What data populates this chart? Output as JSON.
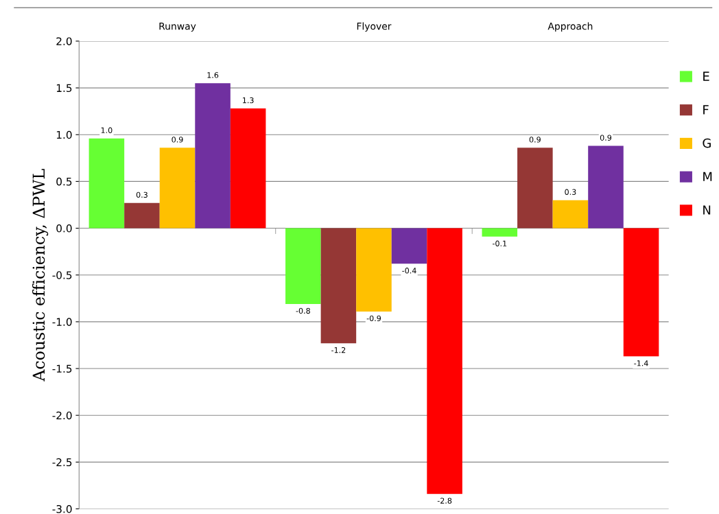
{
  "chart_data": {
    "type": "bar",
    "ylabel": "Acoustic efficiency, ΔPWL",
    "categories": [
      "Runway",
      "Flyover",
      "Approach"
    ],
    "series": [
      {
        "name": "E",
        "color": "#66ff33",
        "values": [
          0.96,
          -0.81,
          -0.09
        ],
        "value_labels": [
          "1.0",
          "-0.8",
          "-0.1"
        ]
      },
      {
        "name": "F",
        "color": "#953735",
        "values": [
          0.27,
          -1.23,
          0.86
        ],
        "value_labels": [
          "0.3",
          "-1.2",
          "0.9"
        ]
      },
      {
        "name": "G",
        "color": "#ffc000",
        "values": [
          0.86,
          -0.89,
          0.3
        ],
        "value_labels": [
          "0.9",
          "-0.9",
          "0.3"
        ]
      },
      {
        "name": "M",
        "color": "#7030a0",
        "values": [
          1.55,
          -0.38,
          0.88
        ],
        "value_labels": [
          "1.6",
          "-0.4",
          "0.9"
        ]
      },
      {
        "name": "N",
        "color": "#ff0000",
        "values": [
          1.28,
          -2.84,
          -1.37
        ],
        "value_labels": [
          "1.3",
          "-2.8",
          "-1.4"
        ]
      }
    ],
    "ylim": [
      -3.0,
      2.0
    ],
    "yticks": [
      {
        "value": -3.0,
        "label": "-3.0"
      },
      {
        "value": -2.5,
        "label": "-2.5"
      },
      {
        "value": -2.0,
        "label": "-2.0"
      },
      {
        "value": -1.5,
        "label": "-1.5"
      },
      {
        "value": -1.0,
        "label": "-1.0"
      },
      {
        "value": -0.5,
        "label": "-0.5"
      },
      {
        "value": 0.0,
        "label": "0.0"
      },
      {
        "value": 0.5,
        "label": "0.5"
      },
      {
        "value": 1.0,
        "label": "1.0"
      },
      {
        "value": 1.5,
        "label": "1.5"
      },
      {
        "value": 2.0,
        "label": "2.0"
      }
    ],
    "grid": "y",
    "legend": "right"
  }
}
